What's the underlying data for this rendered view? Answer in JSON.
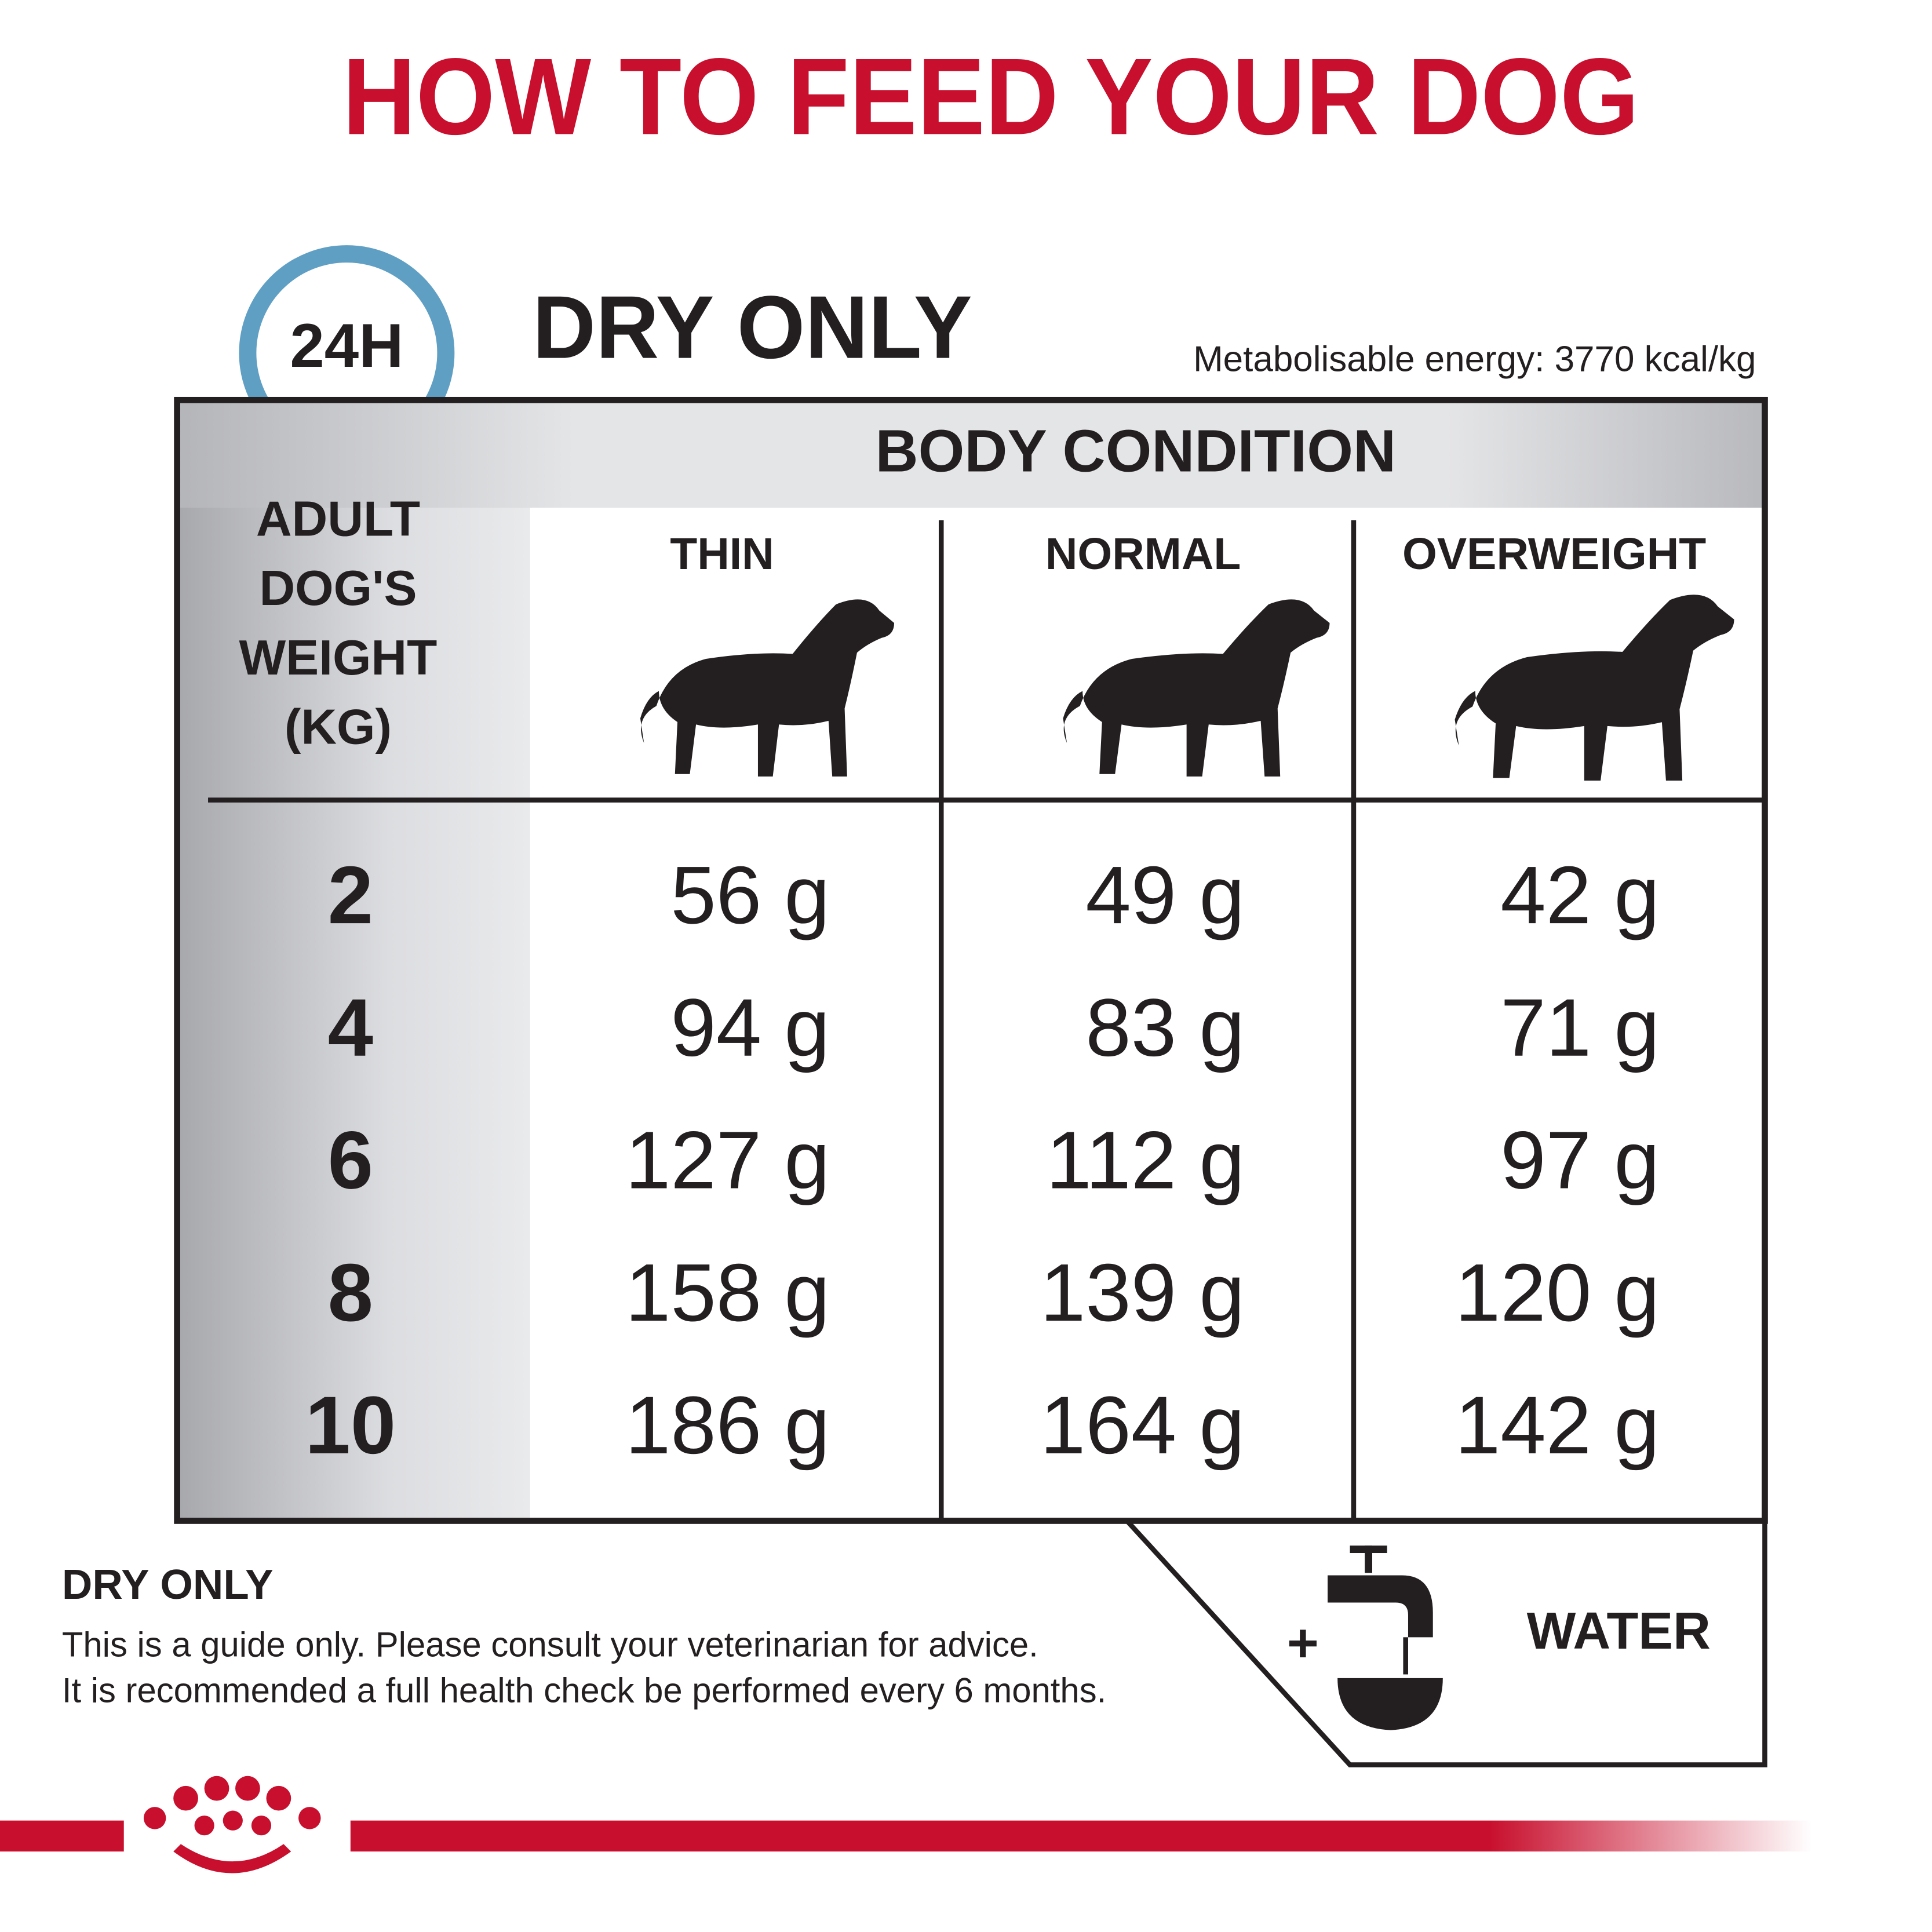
{
  "header": {
    "title": "HOW TO FEED YOUR DOG"
  },
  "badge": "24H",
  "section_title": "DRY ONLY",
  "energy": "Metabolisable energy: 3770 kcal/kg",
  "table": {
    "group_header": "BODY CONDITION",
    "row_header": [
      "ADULT",
      "DOG'S",
      "WEIGHT",
      "(KG)"
    ],
    "columns": [
      "THIN",
      "NORMAL",
      "OVERWEIGHT"
    ],
    "rows": [
      [
        "2",
        "56 g",
        "49 g",
        "42 g"
      ],
      [
        "4",
        "94 g",
        "83 g",
        "71 g"
      ],
      [
        "6",
        "127 g",
        "112 g",
        "97 g"
      ],
      [
        "8",
        "158 g",
        "139 g",
        "120 g"
      ],
      [
        "10",
        "186 g",
        "164 g",
        "142 g"
      ]
    ]
  },
  "footer": {
    "title": "DRY ONLY",
    "lines": [
      "This is a guide only. Please consult your veterinarian for advice.",
      "It is recommended a full health check be performed every 6 months."
    ],
    "water": "WATER"
  }
}
